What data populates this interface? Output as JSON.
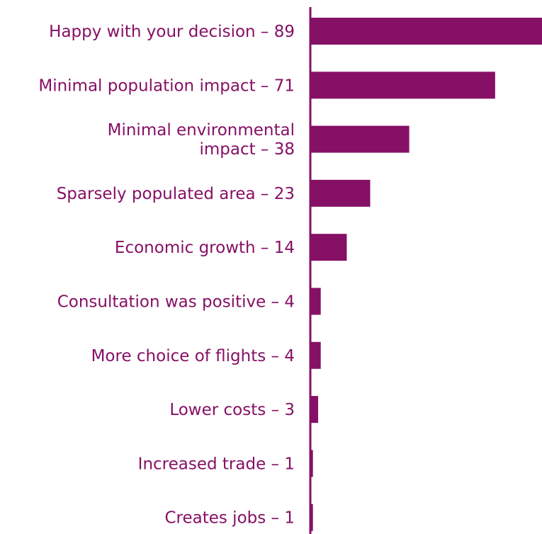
{
  "chart_data": {
    "type": "bar",
    "orientation": "horizontal",
    "categories": [
      "Happy with your decision – 89",
      "Minimal population impact – 71",
      "Minimal environmental impact – 38",
      "Sparsely populated area – 23",
      "Economic growth – 14",
      "Consultation was positive – 4",
      "More choice of flights – 4",
      "Lower costs – 3",
      "Increased trade – 1",
      "Creates jobs – 1"
    ],
    "values": [
      89,
      71,
      38,
      23,
      14,
      4,
      4,
      3,
      1,
      1
    ],
    "xlim": [
      0,
      89
    ],
    "grid": false,
    "legend": "none"
  },
  "colors": {
    "bar": "#861065",
    "text": "#861065",
    "axis": "#861065"
  }
}
